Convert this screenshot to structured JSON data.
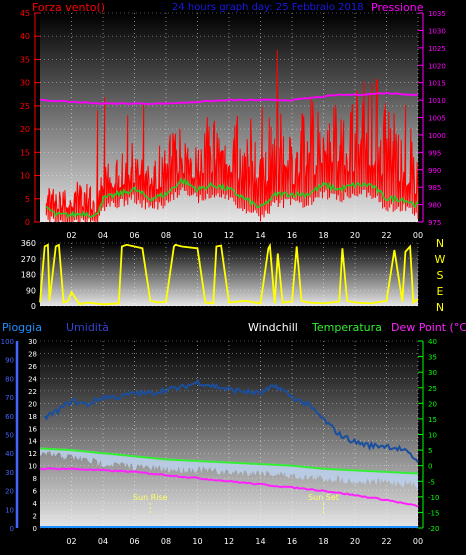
{
  "colors": {
    "background": "#000000",
    "plot_top": "#000000",
    "plot_bottom": "#e6e6e6",
    "wind": "#ff0000",
    "wind_avg": "#22cc22",
    "pressure": "#ff00ff",
    "direction": "#ffff00",
    "humidity": "#1a4fa0",
    "humidity_label": "#3344cc",
    "windchill": "#bcd2ee",
    "temperature": "#33ee33",
    "dew_point": "#ff22ff",
    "rain": "#1e90ff",
    "axis_white": "#ffffff",
    "axis_red": "#ff0000",
    "axis_magenta": "#ff00ff",
    "axis_green": "#00ff00",
    "axis_blue": "#4466ff",
    "sun_marker": "#ffff66"
  },
  "chart_data": [
    {
      "type": "line",
      "title": "24 hours graph day: 25 Febbraio 2018",
      "left_label": "Forza vento()",
      "right_label": "Pressione",
      "x_ticks": [
        "02",
        "04",
        "06",
        "08",
        "10",
        "12",
        "14",
        "16",
        "18",
        "20",
        "22",
        "00"
      ],
      "y_left_range": [
        0,
        45
      ],
      "y_left_ticks": [
        0,
        5,
        10,
        15,
        20,
        25,
        30,
        35,
        40,
        45
      ],
      "y_right_range": [
        975,
        1035
      ],
      "y_right_ticks": [
        975,
        980,
        985,
        990,
        995,
        1000,
        1005,
        1010,
        1015,
        1020,
        1025,
        1030,
        1035
      ],
      "series": [
        {
          "key": "gust",
          "hours": [
            0.5,
            1,
            2,
            3,
            3.5,
            4,
            5,
            6,
            7,
            8,
            9,
            10,
            11,
            12,
            13,
            14,
            15,
            16,
            17,
            18,
            19,
            20,
            21,
            22,
            23,
            24
          ],
          "values": [
            8,
            5,
            6,
            7,
            4,
            10,
            12,
            14,
            10,
            16,
            17,
            15,
            20,
            20,
            16,
            18,
            19,
            15,
            20,
            25,
            20,
            22,
            25,
            22,
            20,
            14
          ]
        },
        {
          "key": "wind_avg",
          "hours": [
            0.5,
            1,
            2,
            3,
            3.5,
            4,
            5,
            6,
            7,
            8,
            9,
            10,
            11,
            12,
            13,
            14,
            15,
            16,
            17,
            18,
            19,
            20,
            21,
            22,
            23,
            24
          ],
          "values": [
            3,
            1.5,
            1.5,
            2,
            1,
            5,
            6,
            7,
            5,
            6,
            9,
            7,
            8,
            7,
            5,
            3,
            6,
            6,
            6,
            8,
            7,
            8,
            8,
            5,
            5,
            3.5
          ]
        },
        {
          "key": "pressure",
          "hours": [
            0,
            2,
            4,
            6,
            8,
            10,
            12,
            14,
            16,
            17,
            18,
            19,
            20,
            22,
            24
          ],
          "values": [
            1010,
            1009.5,
            1009,
            1009,
            1009,
            1009.5,
            1010,
            1010,
            1010,
            1010.5,
            1011,
            1011.5,
            1011.5,
            1012,
            1011.5
          ]
        }
      ]
    },
    {
      "type": "line",
      "title": "",
      "right_label": [
        "N",
        "W",
        "S",
        "E",
        "N"
      ],
      "y_range": [
        0,
        360
      ],
      "y_ticks": [
        0,
        90,
        180,
        270,
        360
      ],
      "series": [
        {
          "key": "direction",
          "hours": [
            0,
            0.3,
            0.5,
            0.6,
            1.0,
            1.2,
            1.5,
            1.8,
            2.0,
            2.5,
            3,
            4,
            5,
            5.2,
            5.5,
            6,
            6.5,
            7,
            7.5,
            8,
            8.5,
            8.6,
            9,
            10,
            10.5,
            11,
            11.2,
            11.5,
            12,
            13,
            14,
            14.5,
            14.6,
            14.9,
            15.1,
            15.4,
            16,
            16.3,
            16.6,
            17,
            18,
            19,
            19.2,
            19.5,
            20,
            21,
            22,
            22.5,
            23,
            23.2,
            23.5,
            23.7,
            24
          ],
          "values": [
            20,
            340,
            350,
            30,
            340,
            350,
            20,
            30,
            80,
            10,
            20,
            10,
            15,
            340,
            350,
            340,
            330,
            30,
            20,
            25,
            340,
            350,
            340,
            330,
            20,
            15,
            340,
            345,
            20,
            30,
            15,
            330,
            345,
            15,
            300,
            20,
            25,
            340,
            30,
            20,
            15,
            25,
            330,
            30,
            20,
            15,
            30,
            320,
            25,
            310,
            340,
            20,
            40
          ]
        }
      ]
    },
    {
      "type": "line",
      "title": "",
      "labels": {
        "rain": "Pioggia",
        "humidity": "Umidità",
        "windchill": "Windchill",
        "temperature": "Temperatura",
        "dew_point": "Dew Point (°C)"
      },
      "y_left_outer_range": [
        0,
        100
      ],
      "y_left_outer_ticks": [
        0,
        10,
        20,
        30,
        40,
        50,
        60,
        70,
        80,
        90,
        100
      ],
      "y_left_inner_range": [
        0,
        30
      ],
      "y_left_inner_ticks": [
        0,
        2,
        4,
        6,
        8,
        10,
        12,
        14,
        16,
        18,
        20,
        22,
        24,
        26,
        28,
        30
      ],
      "y_right_range": [
        -20,
        40
      ],
      "y_right_ticks": [
        -20,
        -15,
        -10,
        -5,
        0,
        5,
        10,
        15,
        20,
        25,
        30,
        35,
        40
      ],
      "annotations": [
        {
          "label": "Sun Rise",
          "hour": 7
        },
        {
          "label": "Sun Set",
          "hour": 18
        }
      ],
      "series": [
        {
          "key": "humidity",
          "hours": [
            0,
            1,
            2,
            3,
            4,
            5,
            6,
            7,
            8,
            9,
            10,
            11,
            12,
            13,
            14,
            15,
            16,
            17,
            18,
            19,
            20,
            21,
            22,
            23,
            24
          ],
          "values": [
            58,
            62,
            68,
            66,
            70,
            70,
            72,
            72,
            74,
            75,
            78,
            76,
            74,
            73,
            72,
            76,
            70,
            66,
            58,
            50,
            46,
            44,
            44,
            42,
            36
          ]
        },
        {
          "key": "windchill",
          "hours": [
            0,
            2,
            3,
            4,
            6,
            8,
            10,
            12,
            14,
            16,
            18,
            19,
            20,
            22,
            24
          ],
          "values": [
            5,
            4,
            3,
            2,
            1,
            0,
            0,
            -1,
            -1,
            -2,
            -3,
            -3,
            -4,
            -4,
            -5
          ]
        },
        {
          "key": "temperature",
          "hours": [
            0,
            2,
            4,
            6,
            8,
            10,
            12,
            14,
            16,
            18,
            20,
            22,
            24
          ],
          "values": [
            5.5,
            5,
            4,
            3,
            2,
            1.5,
            1,
            0.5,
            0,
            -1,
            -1.5,
            -2,
            -2.5
          ]
        },
        {
          "key": "dew_point",
          "hours": [
            0,
            2,
            4,
            6,
            8,
            10,
            12,
            14,
            16,
            18,
            20,
            22,
            24
          ],
          "values": [
            -1,
            -1,
            -1.5,
            -2,
            -3,
            -4,
            -5,
            -6,
            -7,
            -8,
            -9.5,
            -11,
            -13
          ]
        },
        {
          "key": "rain",
          "hours": [
            0,
            24
          ],
          "values": [
            0,
            0
          ]
        }
      ]
    }
  ]
}
